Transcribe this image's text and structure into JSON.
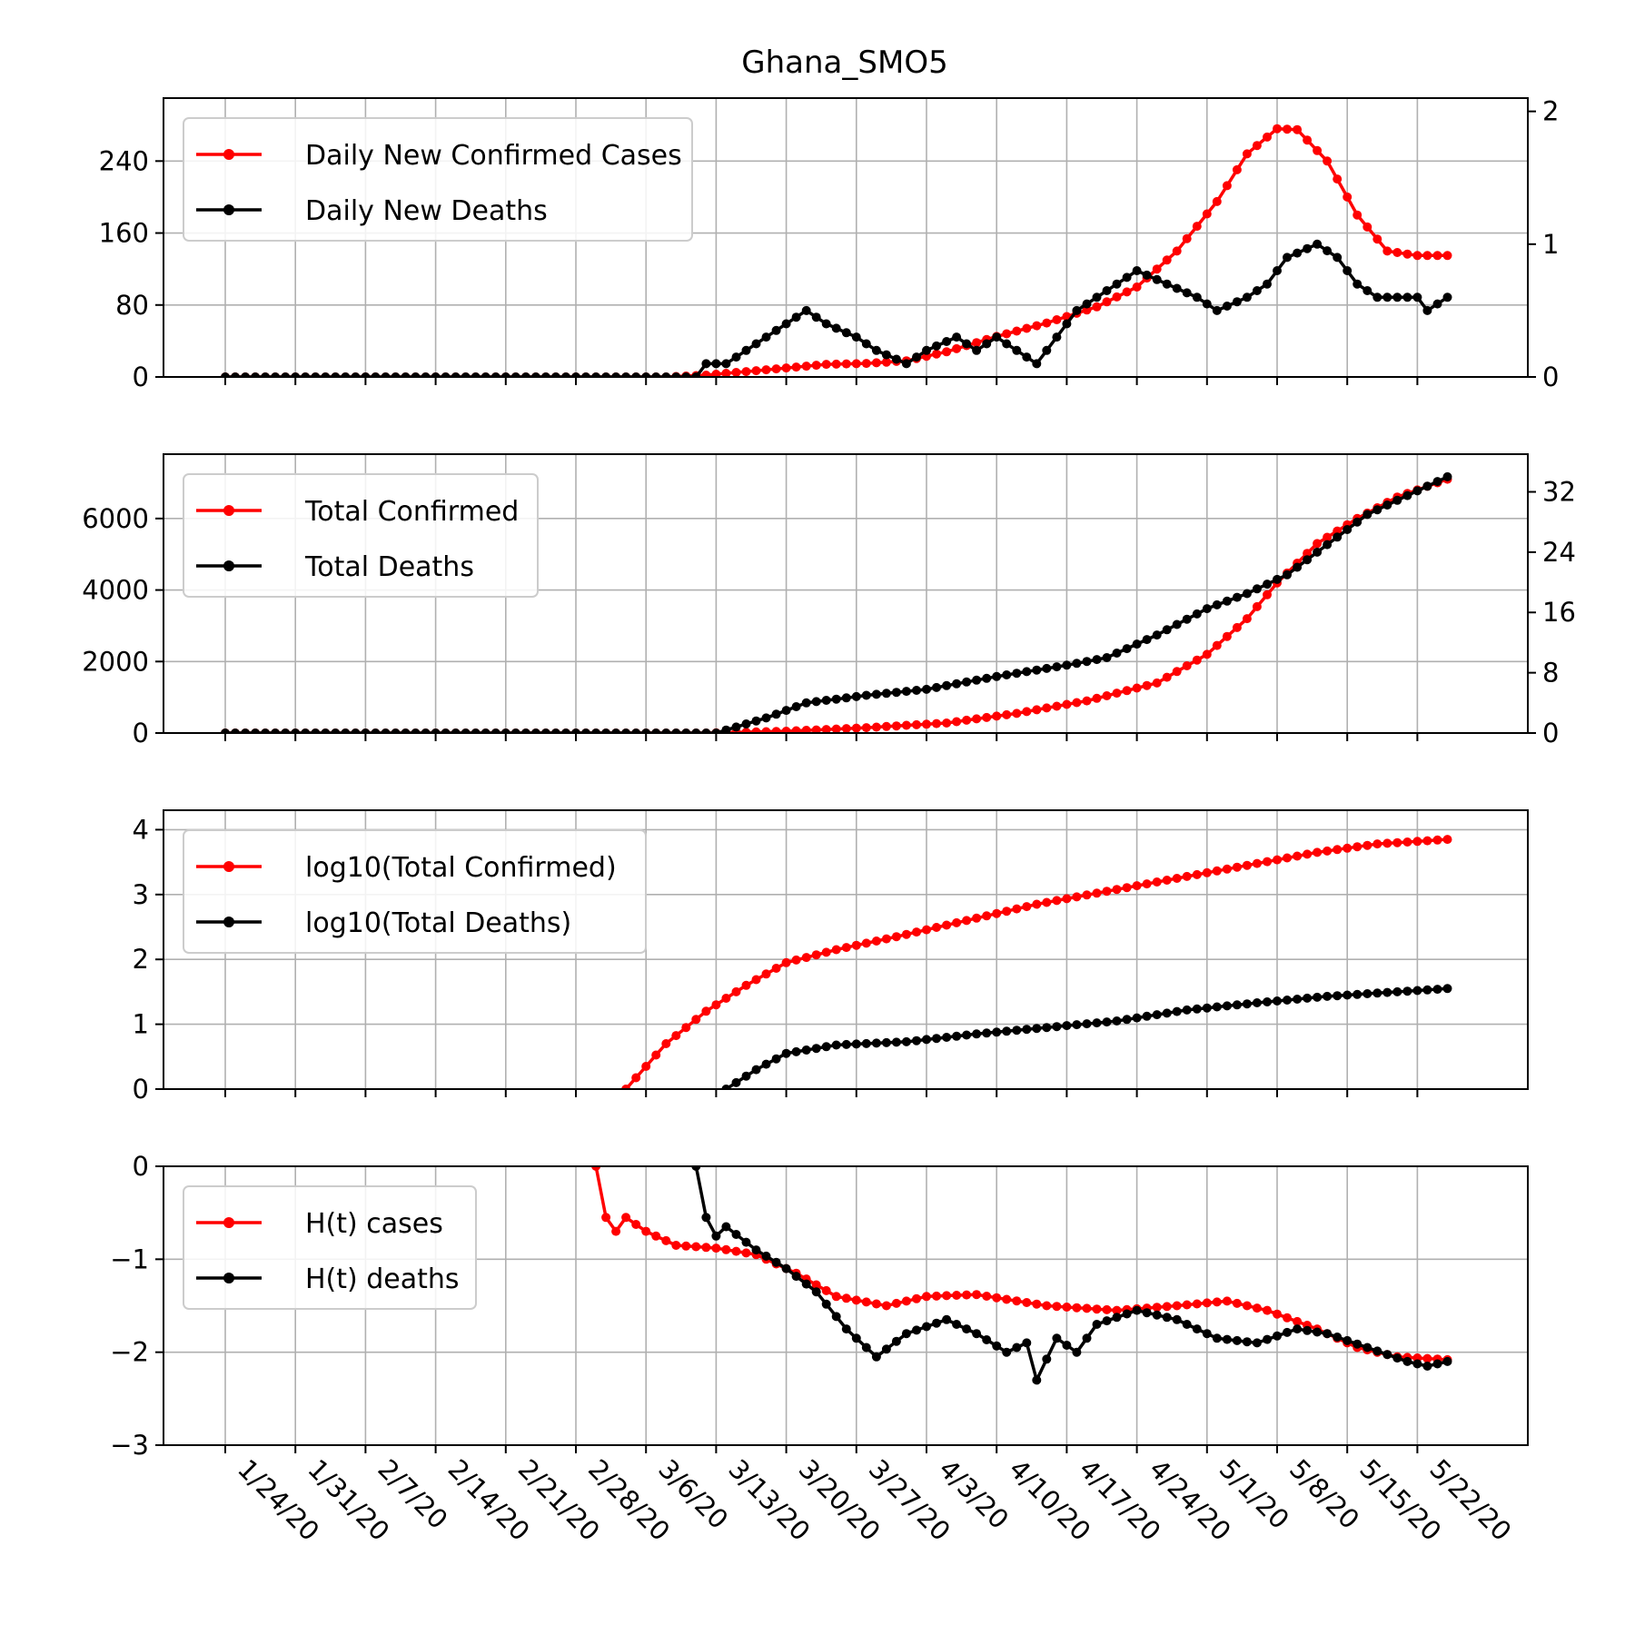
{
  "title": "Ghana_SMO5",
  "colors": {
    "cases": "#ff0000",
    "deaths": "#000000",
    "grid": "#b0b0b0"
  },
  "chart_data": {
    "type": "line",
    "x_tick_labels": [
      "1/24/20",
      "1/31/20",
      "2/7/20",
      "2/14/20",
      "2/21/20",
      "2/28/20",
      "3/6/20",
      "3/13/20",
      "3/20/20",
      "3/27/20",
      "4/3/20",
      "4/10/20",
      "4/17/20",
      "4/24/20",
      "5/1/20",
      "5/8/20",
      "5/15/20",
      "5/22/20"
    ],
    "x_start_date": "1/24/20",
    "x_end_date": "5/25/20",
    "panels": [
      {
        "name": "daily",
        "ylim_left": [
          0,
          310
        ],
        "yticks_left": [
          0,
          80,
          160,
          240
        ],
        "ylim_right": [
          0,
          2.1
        ],
        "yticks_right": [
          0,
          1,
          2
        ],
        "legend": [
          "Daily New Confirmed Cases",
          "Daily New Deaths"
        ],
        "series": [
          {
            "name": "Daily New Confirmed Cases",
            "axis": "left",
            "points": [
              [
                "1/24/20",
                0
              ],
              [
                "3/8/20",
                0
              ],
              [
                "3/12/20",
                2
              ],
              [
                "3/16/20",
                6
              ],
              [
                "3/20/20",
                10
              ],
              [
                "3/24/20",
                14
              ],
              [
                "3/28/20",
                15
              ],
              [
                "4/1/20",
                18
              ],
              [
                "4/5/20",
                28
              ],
              [
                "4/10/20",
                45
              ],
              [
                "4/15/20",
                60
              ],
              [
                "4/20/20",
                78
              ],
              [
                "4/24/20",
                100
              ],
              [
                "4/28/20",
                140
              ],
              [
                "5/2/20",
                195
              ],
              [
                "5/5/20",
                248
              ],
              [
                "5/8/20",
                276
              ],
              [
                "5/10/20",
                275
              ],
              [
                "5/13/20",
                240
              ],
              [
                "5/16/20",
                180
              ],
              [
                "5/19/20",
                140
              ],
              [
                "5/22/20",
                135
              ],
              [
                "5/25/20",
                135
              ]
            ]
          },
          {
            "name": "Daily New Deaths",
            "axis": "right",
            "points": [
              [
                "1/24/20",
                0
              ],
              [
                "3/11/20",
                0
              ],
              [
                "3/12/20",
                0.1
              ],
              [
                "3/14/20",
                0.1
              ],
              [
                "3/16/20",
                0.2
              ],
              [
                "3/18/20",
                0.3
              ],
              [
                "3/20/20",
                0.4
              ],
              [
                "3/22/20",
                0.5
              ],
              [
                "3/24/20",
                0.4
              ],
              [
                "3/27/20",
                0.3
              ],
              [
                "3/29/20",
                0.2
              ],
              [
                "4/1/20",
                0.1
              ],
              [
                "4/3/20",
                0.2
              ],
              [
                "4/6/20",
                0.3
              ],
              [
                "4/8/20",
                0.2
              ],
              [
                "4/10/20",
                0.3
              ],
              [
                "4/12/20",
                0.2
              ],
              [
                "4/14/20",
                0.1
              ],
              [
                "4/16/20",
                0.3
              ],
              [
                "4/18/20",
                0.5
              ],
              [
                "4/21/20",
                0.65
              ],
              [
                "4/24/20",
                0.8
              ],
              [
                "4/27/20",
                0.7
              ],
              [
                "4/30/20",
                0.6
              ],
              [
                "5/2/20",
                0.5
              ],
              [
                "5/5/20",
                0.6
              ],
              [
                "5/7/20",
                0.7
              ],
              [
                "5/9/20",
                0.9
              ],
              [
                "5/12/20",
                1.0
              ],
              [
                "5/14/20",
                0.9
              ],
              [
                "5/16/20",
                0.7
              ],
              [
                "5/18/20",
                0.6
              ],
              [
                "5/22/20",
                0.6
              ],
              [
                "5/23/20",
                0.5
              ],
              [
                "5/25/20",
                0.6
              ]
            ]
          }
        ]
      },
      {
        "name": "total",
        "ylim_left": [
          0,
          7800
        ],
        "yticks_left": [
          0,
          2000,
          4000,
          6000
        ],
        "ylim_right": [
          0,
          37
        ],
        "yticks_right": [
          0,
          8,
          16,
          24,
          32
        ],
        "legend": [
          "Total Confirmed",
          "Total Deaths"
        ],
        "series": [
          {
            "name": "Total Confirmed",
            "axis": "left",
            "points": [
              [
                "1/24/20",
                0
              ],
              [
                "3/12/20",
                0
              ],
              [
                "3/20/20",
                50
              ],
              [
                "3/28/20",
                150
              ],
              [
                "4/5/20",
                280
              ],
              [
                "4/12/20",
                550
              ],
              [
                "4/19/20",
                900
              ],
              [
                "4/26/20",
                1400
              ],
              [
                "5/1/20",
                2200
              ],
              [
                "5/5/20",
                3200
              ],
              [
                "5/8/20",
                4200
              ],
              [
                "5/12/20",
                5300
              ],
              [
                "5/16/20",
                6000
              ],
              [
                "5/20/20",
                6600
              ],
              [
                "5/25/20",
                7100
              ]
            ]
          },
          {
            "name": "Total Deaths",
            "axis": "right",
            "points": [
              [
                "1/24/20",
                0
              ],
              [
                "3/13/20",
                0
              ],
              [
                "3/18/20",
                2
              ],
              [
                "3/22/20",
                4
              ],
              [
                "3/28/20",
                5
              ],
              [
                "4/3/20",
                5.8
              ],
              [
                "4/10/20",
                7.5
              ],
              [
                "4/17/20",
                9
              ],
              [
                "4/21/20",
                10
              ],
              [
                "4/26/20",
                13
              ],
              [
                "5/1/20",
                16.5
              ],
              [
                "5/5/20",
                18.5
              ],
              [
                "5/9/20",
                21
              ],
              [
                "5/13/20",
                25
              ],
              [
                "5/17/20",
                29
              ],
              [
                "5/21/20",
                31.5
              ],
              [
                "5/25/20",
                34
              ]
            ]
          }
        ]
      },
      {
        "name": "log",
        "ylim": [
          0,
          4.3
        ],
        "yticks": [
          0,
          1,
          2,
          3,
          4
        ],
        "legend": [
          "log10(Total Confirmed)",
          "log10(Total Deaths)"
        ],
        "series": [
          {
            "name": "log10(Total Confirmed)",
            "points": [
              [
                "3/4/20",
                0
              ],
              [
                "3/8/20",
                0.7
              ],
              [
                "3/12/20",
                1.2
              ],
              [
                "3/16/20",
                1.6
              ],
              [
                "3/20/20",
                1.95
              ],
              [
                "3/25/20",
                2.15
              ],
              [
                "3/31/20",
                2.35
              ],
              [
                "4/7/20",
                2.6
              ],
              [
                "4/14/20",
                2.85
              ],
              [
                "4/21/20",
                3.05
              ],
              [
                "4/28/20",
                3.25
              ],
              [
                "5/5/20",
                3.45
              ],
              [
                "5/12/20",
                3.65
              ],
              [
                "5/18/20",
                3.78
              ],
              [
                "5/25/20",
                3.85
              ]
            ]
          },
          {
            "name": "log10(Total Deaths)",
            "points": [
              [
                "3/14/20",
                0
              ],
              [
                "3/17/20",
                0.3
              ],
              [
                "3/20/20",
                0.55
              ],
              [
                "3/25/20",
                0.68
              ],
              [
                "4/1/20",
                0.73
              ],
              [
                "4/8/20",
                0.85
              ],
              [
                "4/15/20",
                0.95
              ],
              [
                "4/22/20",
                1.05
              ],
              [
                "4/29/20",
                1.22
              ],
              [
                "5/6/20",
                1.33
              ],
              [
                "5/13/20",
                1.43
              ],
              [
                "5/20/20",
                1.5
              ],
              [
                "5/25/20",
                1.55
              ]
            ]
          }
        ]
      },
      {
        "name": "hurst",
        "ylim": [
          -3,
          0
        ],
        "yticks": [
          0,
          -1,
          -2,
          -3
        ],
        "ytick_labels": [
          "0",
          "−1",
          "−2",
          "−3"
        ],
        "legend": [
          "H(t) cases",
          "H(t) deaths"
        ],
        "series": [
          {
            "name": "H(t) cases",
            "points": [
              [
                "3/1/20",
                0
              ],
              [
                "3/2/20",
                -0.55
              ],
              [
                "3/3/20",
                -0.7
              ],
              [
                "3/4/20",
                -0.55
              ],
              [
                "3/6/20",
                -0.7
              ],
              [
                "3/9/20",
                -0.85
              ],
              [
                "3/13/20",
                -0.88
              ],
              [
                "3/17/20",
                -0.95
              ],
              [
                "3/21/20",
                -1.15
              ],
              [
                "3/25/20",
                -1.4
              ],
              [
                "3/30/20",
                -1.5
              ],
              [
                "4/3/20",
                -1.4
              ],
              [
                "4/8/20",
                -1.38
              ],
              [
                "4/15/20",
                -1.5
              ],
              [
                "4/22/20",
                -1.55
              ],
              [
                "4/28/20",
                -1.5
              ],
              [
                "5/3/20",
                -1.45
              ],
              [
                "5/7/20",
                -1.55
              ],
              [
                "5/12/20",
                -1.75
              ],
              [
                "5/16/20",
                -1.95
              ],
              [
                "5/20/20",
                -2.05
              ],
              [
                "5/25/20",
                -2.08
              ]
            ]
          },
          {
            "name": "H(t) deaths",
            "points": [
              [
                "3/11/20",
                0
              ],
              [
                "3/12/20",
                -0.55
              ],
              [
                "3/13/20",
                -0.75
              ],
              [
                "3/14/20",
                -0.65
              ],
              [
                "3/17/20",
                -0.9
              ],
              [
                "3/20/20",
                -1.1
              ],
              [
                "3/23/20",
                -1.35
              ],
              [
                "3/26/20",
                -1.75
              ],
              [
                "3/29/20",
                -2.05
              ],
              [
                "4/1/20",
                -1.8
              ],
              [
                "4/5/20",
                -1.65
              ],
              [
                "4/8/20",
                -1.8
              ],
              [
                "4/11/20",
                -2.0
              ],
              [
                "4/13/20",
                -1.9
              ],
              [
                "4/14/20",
                -2.3
              ],
              [
                "4/16/20",
                -1.85
              ],
              [
                "4/18/20",
                -2.0
              ],
              [
                "4/20/20",
                -1.7
              ],
              [
                "4/24/20",
                -1.55
              ],
              [
                "4/28/20",
                -1.65
              ],
              [
                "5/2/20",
                -1.85
              ],
              [
                "5/6/20",
                -1.9
              ],
              [
                "5/10/20",
                -1.75
              ],
              [
                "5/13/20",
                -1.8
              ],
              [
                "5/17/20",
                -1.95
              ],
              [
                "5/21/20",
                -2.1
              ],
              [
                "5/23/20",
                -2.15
              ],
              [
                "5/25/20",
                -2.1
              ]
            ]
          }
        ]
      }
    ]
  }
}
